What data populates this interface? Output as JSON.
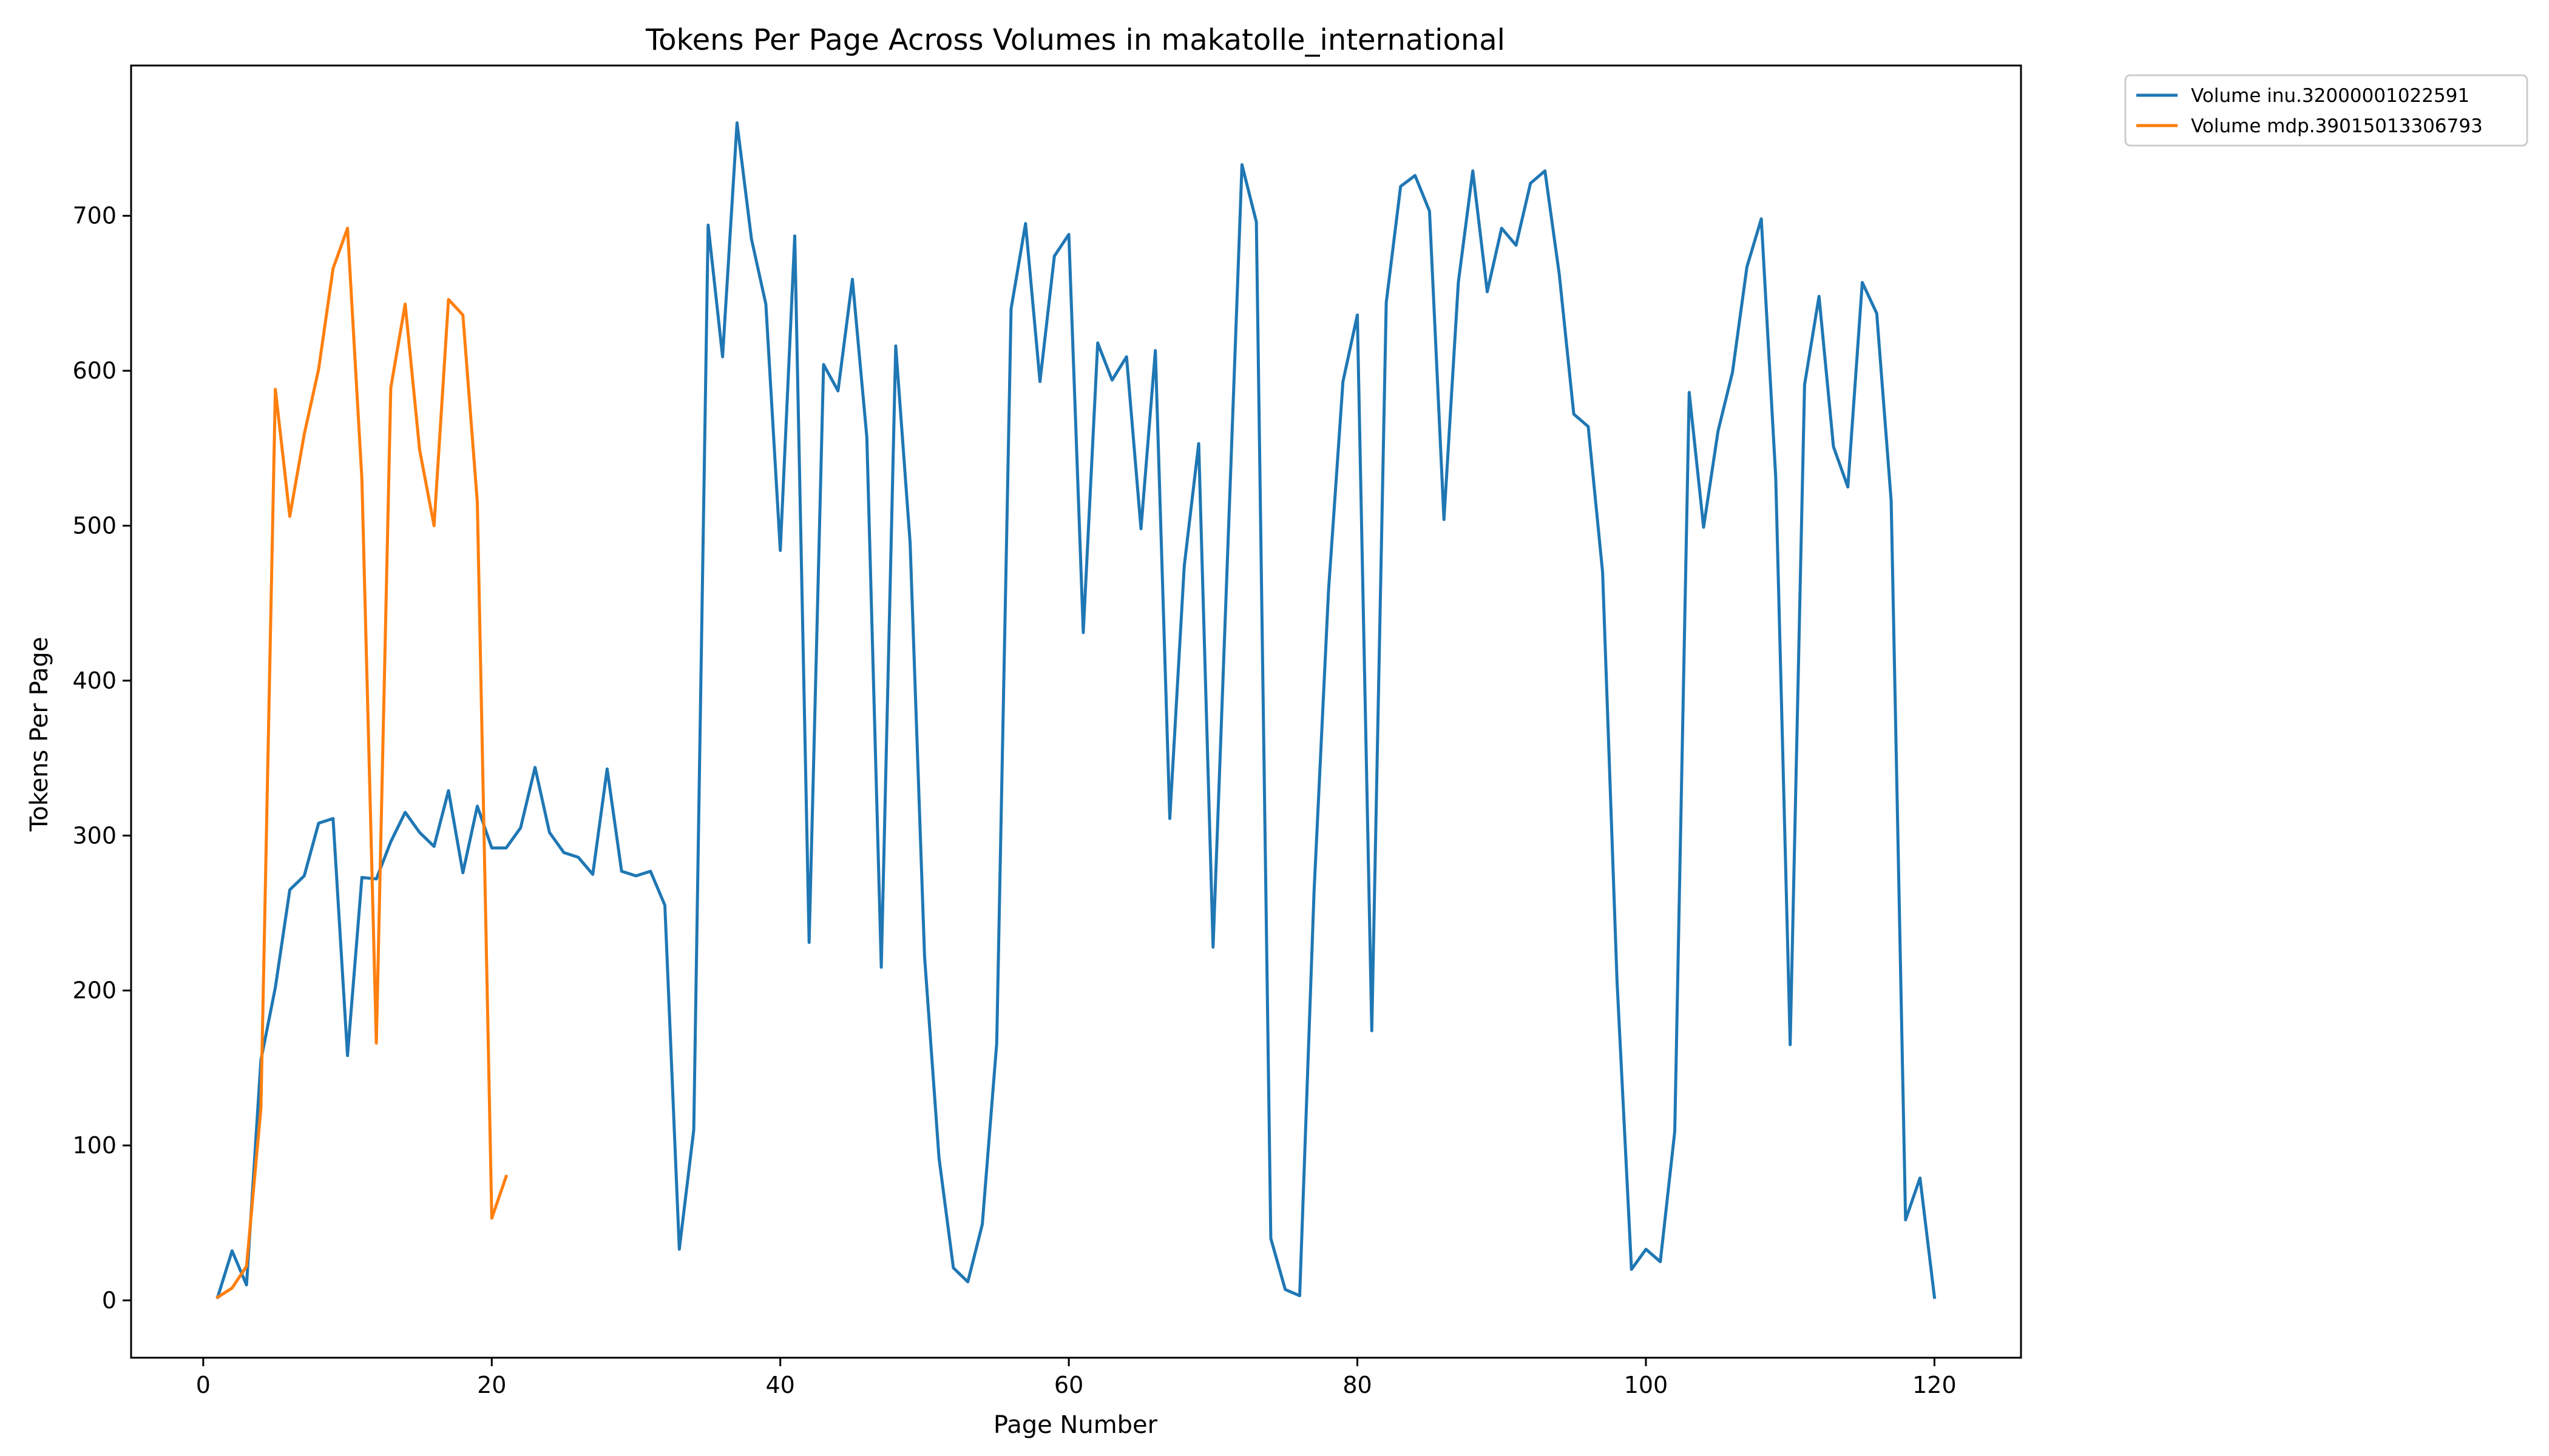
{
  "chart_data": {
    "type": "line",
    "title": "Tokens Per Page Across Volumes in makatolle_international",
    "xlabel": "Page Number",
    "ylabel": "Tokens Per Page",
    "xlim": [
      -5,
      126
    ],
    "ylim": [
      -37,
      797
    ],
    "xticks": [
      0,
      20,
      40,
      60,
      80,
      100,
      120
    ],
    "yticks": [
      0,
      100,
      200,
      300,
      400,
      500,
      600,
      700
    ],
    "grid": false,
    "legend_position": "outside-top-right",
    "series": [
      {
        "name": "Volume inu.32000001022591",
        "color": "#1f77b4",
        "x": [
          1,
          2,
          3,
          4,
          5,
          6,
          7,
          8,
          9,
          10,
          11,
          12,
          13,
          14,
          15,
          16,
          17,
          18,
          19,
          20,
          21,
          22,
          23,
          24,
          25,
          26,
          27,
          28,
          29,
          30,
          31,
          32,
          33,
          34,
          35,
          36,
          37,
          38,
          39,
          40,
          41,
          42,
          43,
          44,
          45,
          46,
          47,
          48,
          49,
          50,
          51,
          52,
          53,
          54,
          55,
          56,
          57,
          58,
          59,
          60,
          61,
          62,
          63,
          64,
          65,
          66,
          67,
          68,
          69,
          70,
          71,
          72,
          73,
          74,
          75,
          76,
          77,
          78,
          79,
          80,
          81,
          82,
          83,
          84,
          85,
          86,
          87,
          88,
          89,
          90,
          91,
          92,
          93,
          94,
          95,
          96,
          97,
          98,
          99,
          100,
          101,
          102,
          103,
          104,
          105,
          106,
          107,
          108,
          109,
          110,
          111,
          112,
          113,
          114,
          115,
          116,
          117,
          118,
          119,
          120
        ],
        "y": [
          2,
          32,
          10,
          155,
          202,
          265,
          274,
          308,
          311,
          158,
          273,
          272,
          296,
          315,
          302,
          293,
          329,
          276,
          319,
          292,
          292,
          305,
          344,
          302,
          289,
          286,
          275,
          343,
          277,
          274,
          277,
          255,
          33,
          110,
          694,
          609,
          760,
          685,
          643,
          484,
          687,
          231,
          604,
          587,
          659,
          557,
          215,
          616,
          489,
          222,
          92,
          21,
          12,
          49,
          166,
          640,
          695,
          593,
          674,
          688,
          431,
          618,
          594,
          609,
          498,
          613,
          311,
          474,
          553,
          228,
          480,
          733,
          696,
          40,
          7,
          3,
          264,
          458,
          593,
          636,
          174,
          644,
          719,
          726,
          703,
          504,
          657,
          729,
          651,
          692,
          681,
          721,
          729,
          662,
          572,
          564,
          470,
          206,
          20,
          33,
          25,
          109,
          586,
          499,
          561,
          599,
          667,
          698,
          531,
          165,
          591,
          648,
          551,
          525,
          657,
          637,
          516,
          52,
          79,
          2
        ]
      },
      {
        "name": "Volume mdp.39015013306793",
        "color": "#ff7f0e",
        "x": [
          1,
          2,
          3,
          4,
          5,
          6,
          7,
          8,
          9,
          10,
          11,
          12,
          13,
          14,
          15,
          16,
          17,
          18,
          19,
          20,
          21
        ],
        "y": [
          2,
          8,
          22,
          124,
          588,
          506,
          559,
          601,
          666,
          692,
          530,
          166,
          589,
          643,
          549,
          500,
          646,
          636,
          515,
          53,
          80
        ]
      }
    ]
  }
}
